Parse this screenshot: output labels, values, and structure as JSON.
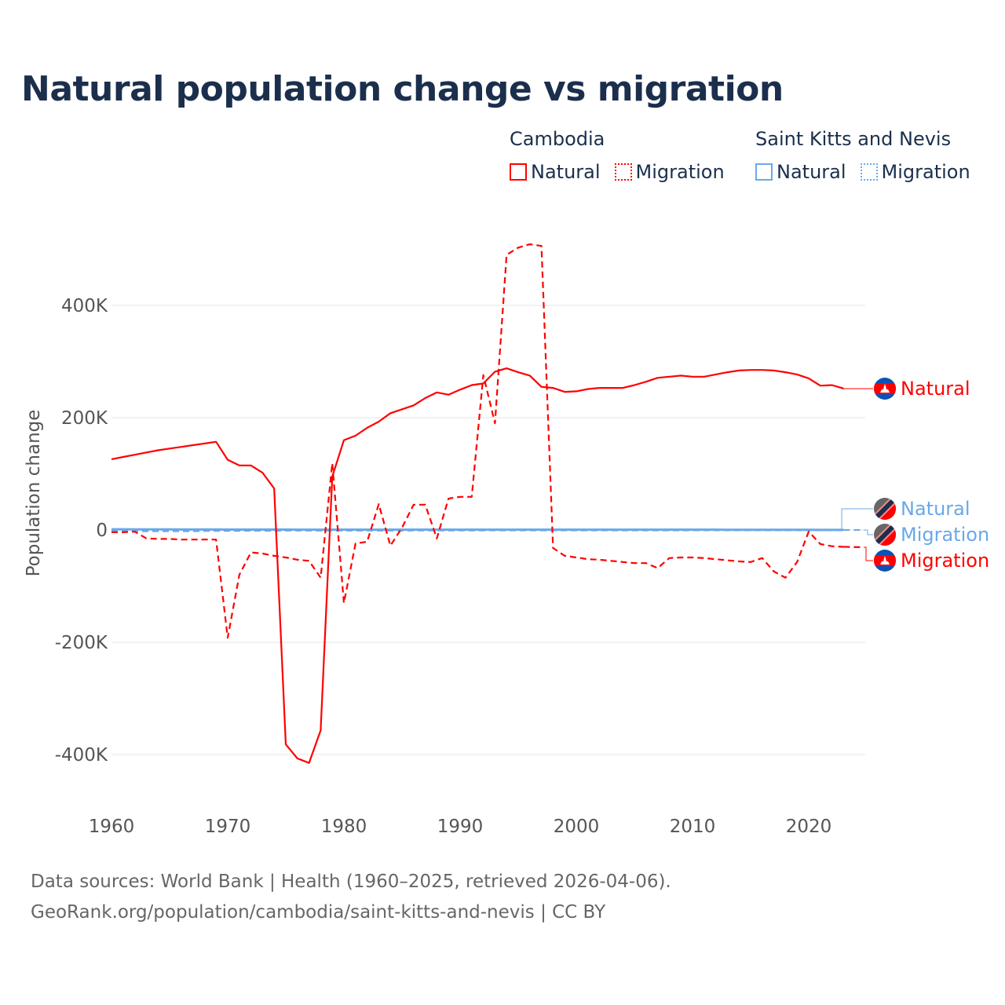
{
  "title": "Natural population change vs migration",
  "legend": {
    "groups": [
      {
        "name": "Cambodia",
        "items": [
          "Natural",
          "Migration"
        ],
        "color": "#ff0000"
      },
      {
        "name": "Saint Kitts and Nevis",
        "items": [
          "Natural",
          "Migration"
        ],
        "color": "#6aa8e8"
      }
    ]
  },
  "footer": {
    "line1": "Data sources: World Bank | Health (1960–2025, retrieved 2026-04-06).",
    "line2": "GeoRank.org/population/cambodia/saint-kitts-and-nevis | CC BY"
  },
  "end_labels": {
    "kh_natural": "Natural",
    "kn_natural": "Natural",
    "kn_migration": "Migration",
    "kh_migration": "Migration"
  },
  "chart_data": {
    "type": "line",
    "title": "Natural population change vs migration",
    "xlabel": "",
    "ylabel": "Population change",
    "xlim": [
      1960,
      2025
    ],
    "ylim": [
      -500000,
      520000
    ],
    "xticks": [
      1960,
      1970,
      1980,
      1990,
      2000,
      2010,
      2020
    ],
    "yticks": [
      {
        "v": 400000,
        "label": "400K"
      },
      {
        "v": 200000,
        "label": "200K"
      },
      {
        "v": 0,
        "label": "0"
      },
      {
        "v": -200000,
        "label": "-200K"
      },
      {
        "v": -400000,
        "label": "-400K"
      }
    ],
    "grid": true,
    "legend_position": "top-right",
    "x_start": 1960,
    "series": [
      {
        "name": "Cambodia Natural",
        "color": "#ff0000",
        "dash": false,
        "values": [
          126,
          130,
          134,
          138,
          142,
          145,
          148,
          151,
          154,
          157,
          125,
          115,
          115,
          102,
          74,
          -382,
          -407,
          -415,
          -357,
          95,
          160,
          168,
          182,
          193,
          208,
          215,
          222,
          235,
          245,
          241,
          250,
          258,
          261,
          282,
          288,
          281,
          275,
          255,
          253,
          246,
          247,
          251,
          253,
          253,
          253,
          258,
          264,
          271,
          273,
          275,
          273,
          273,
          277,
          281,
          284,
          285,
          285,
          284,
          281,
          277,
          270,
          257,
          258,
          252
        ]
      },
      {
        "name": "Cambodia Migration",
        "color": "#ff0000",
        "dash": true,
        "values": [
          -4,
          -4,
          -3,
          -15,
          -16,
          -16,
          -17,
          -17,
          -17,
          -17,
          -192,
          -80,
          -40,
          -42,
          -46,
          -49,
          -53,
          -55,
          -85,
          119,
          -130,
          -24,
          -21,
          46,
          -28,
          4,
          45,
          45,
          -15,
          56,
          59,
          59,
          276,
          190,
          490,
          503,
          509,
          506,
          -32,
          -46,
          -49,
          -52,
          -53,
          -55,
          -57,
          -59,
          -59,
          -68,
          -50,
          -49,
          -49,
          -50,
          -52,
          -54,
          -56,
          -57,
          -50,
          -74,
          -85,
          -57,
          -3,
          -25,
          -29,
          -30
        ]
      },
      {
        "name": "Saint Kitts and Nevis Natural",
        "color": "#6aa8e8",
        "dash": false,
        "values": [
          1.2,
          1.2,
          1.1,
          1.1,
          1,
          1,
          0.9,
          0.9,
          0.8,
          0.8,
          0.7,
          0.7,
          0.7,
          0.7,
          0.7,
          0.7,
          0.6,
          0.6,
          0.6,
          0.6,
          0.6,
          0.6,
          0.6,
          0.6,
          0.6,
          0.6,
          0.6,
          0.6,
          0.6,
          0.6,
          0.6,
          0.6,
          0.6,
          0.6,
          0.6,
          0.6,
          0.6,
          0.6,
          0.6,
          0.6,
          0.6,
          0.6,
          0.6,
          0.6,
          0.6,
          0.5,
          0.5,
          0.5,
          0.5,
          0.5,
          0.5,
          0.5,
          0.5,
          0.4,
          0.4,
          0.4,
          0.4,
          0.4,
          0.3,
          0.3,
          0.3,
          0.2,
          0.2,
          0.2
        ]
      },
      {
        "name": "Saint Kitts and Nevis Migration",
        "color": "#6aa8e8",
        "dash": true,
        "values": [
          -1.5,
          -1.5,
          -1.5,
          -1.5,
          -1.5,
          -1.5,
          -1.5,
          -1.5,
          -1.2,
          -1,
          -1,
          -1,
          -0.8,
          -0.8,
          -0.8,
          -0.6,
          -0.6,
          -0.6,
          -0.5,
          -0.5,
          -0.5,
          -0.5,
          -0.5,
          -0.5,
          -0.5,
          -0.5,
          -0.4,
          -0.4,
          -0.4,
          -0.4,
          -0.3,
          -0.3,
          -0.3,
          -0.2,
          -0.2,
          -0.2,
          -0.2,
          -0.2,
          -0.2,
          -0.2,
          -0.2,
          -0.1,
          -0.1,
          -0.1,
          -0.1,
          -0.1,
          -0.1,
          -0.1,
          -0.1,
          -0.1,
          0,
          0,
          0,
          0,
          0,
          0,
          0,
          0,
          0,
          0,
          0,
          0,
          0,
          0
        ]
      }
    ],
    "value_unit": "thousands"
  }
}
